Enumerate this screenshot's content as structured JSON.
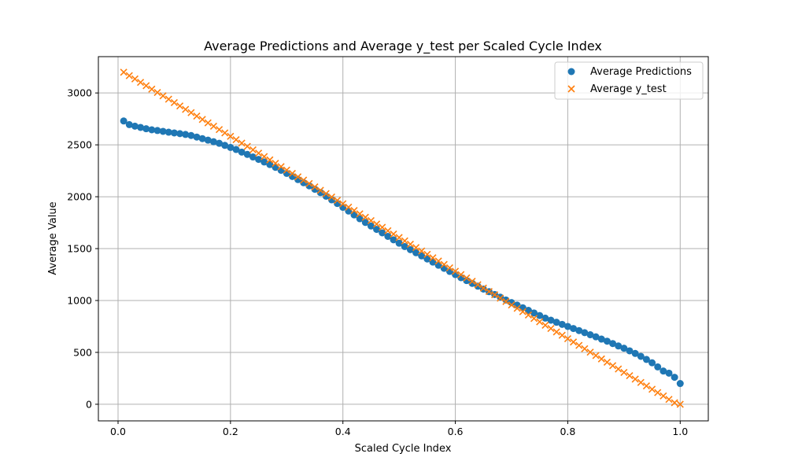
{
  "chart_data": {
    "type": "scatter",
    "title": "Average Predictions and Average y_test per Scaled Cycle Index",
    "xlabel": "Scaled Cycle Index",
    "ylabel": "Average Value",
    "xlim": [
      -0.035,
      1.05
    ],
    "ylim": [
      -160,
      3350
    ],
    "x_ticks": [
      0,
      0.2,
      0.4,
      0.6,
      0.8,
      1.0
    ],
    "x_tick_labels": [
      "0.0",
      "0.2",
      "0.4",
      "0.6",
      "0.8",
      "1.0"
    ],
    "y_ticks": [
      0,
      500,
      1000,
      1500,
      2000,
      2500,
      3000
    ],
    "y_tick_labels": [
      "0",
      "500",
      "1000",
      "1500",
      "2000",
      "2500",
      "3000"
    ],
    "grid": true,
    "legend_position": "top-right",
    "x": [
      0.01,
      0.02,
      0.03,
      0.04,
      0.05,
      0.06,
      0.07,
      0.08,
      0.09,
      0.1,
      0.11,
      0.12,
      0.13,
      0.14,
      0.15,
      0.16,
      0.17,
      0.18,
      0.19,
      0.2,
      0.21,
      0.22,
      0.23,
      0.24,
      0.25,
      0.26,
      0.27,
      0.28,
      0.29,
      0.3,
      0.31,
      0.32,
      0.33,
      0.34,
      0.35,
      0.36,
      0.37,
      0.38,
      0.39,
      0.4,
      0.41,
      0.42,
      0.43,
      0.44,
      0.45,
      0.46,
      0.47,
      0.48,
      0.49,
      0.5,
      0.51,
      0.52,
      0.53,
      0.54,
      0.55,
      0.56,
      0.57,
      0.58,
      0.59,
      0.6,
      0.61,
      0.62,
      0.63,
      0.64,
      0.65,
      0.66,
      0.67,
      0.68,
      0.69,
      0.7,
      0.71,
      0.72,
      0.73,
      0.74,
      0.75,
      0.76,
      0.77,
      0.78,
      0.79,
      0.8,
      0.81,
      0.82,
      0.83,
      0.84,
      0.85,
      0.86,
      0.87,
      0.88,
      0.89,
      0.9,
      0.91,
      0.92,
      0.93,
      0.94,
      0.95,
      0.96,
      0.97,
      0.98,
      0.99,
      1.0
    ],
    "series": [
      {
        "name": "Average Predictions",
        "marker": "circle",
        "color": "#1f77b4",
        "values": [
          2730,
          2695,
          2680,
          2668,
          2655,
          2645,
          2638,
          2630,
          2622,
          2615,
          2608,
          2600,
          2590,
          2575,
          2560,
          2545,
          2530,
          2515,
          2495,
          2475,
          2455,
          2430,
          2408,
          2383,
          2360,
          2335,
          2310,
          2283,
          2255,
          2225,
          2195,
          2165,
          2135,
          2105,
          2072,
          2040,
          2005,
          1970,
          1935,
          1898,
          1862,
          1825,
          1788,
          1752,
          1718,
          1685,
          1652,
          1618,
          1585,
          1552,
          1520,
          1490,
          1460,
          1430,
          1400,
          1370,
          1340,
          1310,
          1280,
          1250,
          1220,
          1192,
          1165,
          1138,
          1110,
          1085,
          1058,
          1032,
          1005,
          980,
          955,
          930,
          905,
          880,
          855,
          830,
          810,
          790,
          770,
          750,
          730,
          710,
          690,
          670,
          650,
          628,
          608,
          585,
          562,
          540,
          515,
          490,
          462,
          432,
          400,
          360,
          320,
          300,
          260,
          200
        ]
      },
      {
        "name": "Average y_test",
        "marker": "x",
        "color": "#ff7f0e",
        "values": [
          3200,
          3167,
          3135,
          3102,
          3070,
          3037,
          3005,
          2972,
          2940,
          2907,
          2875,
          2842,
          2810,
          2777,
          2745,
          2712,
          2680,
          2647,
          2615,
          2582,
          2550,
          2517,
          2485,
          2452,
          2420,
          2387,
          2355,
          2322,
          2290,
          2257,
          2225,
          2192,
          2160,
          2127,
          2095,
          2062,
          2030,
          1997,
          1965,
          1932,
          1900,
          1867,
          1835,
          1802,
          1770,
          1737,
          1705,
          1672,
          1640,
          1607,
          1575,
          1542,
          1510,
          1477,
          1445,
          1412,
          1380,
          1347,
          1315,
          1282,
          1250,
          1217,
          1185,
          1152,
          1120,
          1087,
          1055,
          1022,
          990,
          957,
          925,
          892,
          860,
          827,
          795,
          762,
          730,
          697,
          665,
          632,
          600,
          567,
          535,
          502,
          470,
          437,
          405,
          372,
          340,
          307,
          275,
          242,
          210,
          177,
          145,
          112,
          80,
          47,
          15,
          0
        ]
      }
    ]
  }
}
